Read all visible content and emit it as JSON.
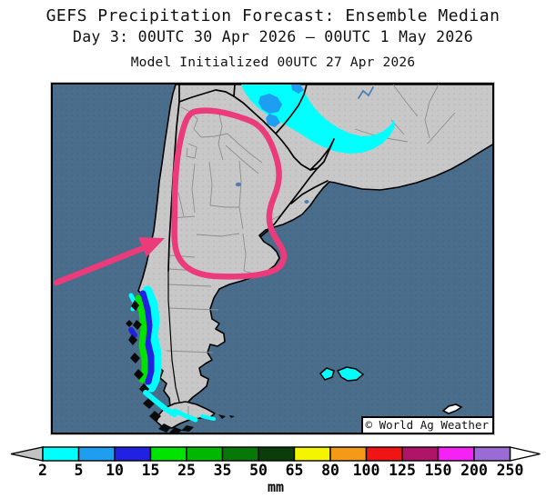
{
  "header": {
    "title": "GEFS Precipitation Forecast: Ensemble Median",
    "subtitle": "Day 3: 00UTC 30 Apr 2026 — 00UTC 1 May 2026",
    "init_line": "Model Initialized 00UTC 27 Apr 2026"
  },
  "map": {
    "watermark": "© World Ag Weather",
    "annotation": {
      "shape": "hand-drawn loop around central/northern Argentina with an arrow entering from the southwest",
      "color": "#EC3B7A"
    },
    "precipitation_regions": [
      {
        "area": "Paraguay / northern Argentina / southern Brazil band",
        "median_precip_mm": "2-10"
      },
      {
        "area": "southern Chile Andes coastal strip",
        "median_precip_mm": "2-25"
      },
      {
        "area": "Tierra del Fuego and Falkland Islands",
        "median_precip_mm": "2-5"
      },
      {
        "area": "central Argentina inside highlighted loop",
        "median_precip_mm": "< 2 (no shading)"
      }
    ]
  },
  "colorbar": {
    "unit": "mm",
    "tick_labels": [
      "2",
      "5",
      "10",
      "15",
      "25",
      "35",
      "50",
      "65",
      "80",
      "100",
      "125",
      "150",
      "200",
      "250"
    ],
    "colors": [
      "#00FFFF",
      "#1E9EF0",
      "#2121E3",
      "#00E400",
      "#00B800",
      "#077807",
      "#0A3D0A",
      "#F5F500",
      "#F59A18",
      "#F01414",
      "#B01468",
      "#F522F5",
      "#9A6BD4"
    ],
    "left_cap_color": "#C2C2C2",
    "right_cap_color": "#FFFFFF"
  },
  "theme": {
    "ocean": "#4A6D8C",
    "land": "#C8C8C8",
    "border": "#000000",
    "province-line": "#8E8E8E",
    "river": "#4F7FB0",
    "annotation-pink": "#EC3B7A",
    "precip-cyan": "#00FFFF",
    "precip-blue": "#1E9EF0",
    "precip-green": "#00E400",
    "page-bg": "#FFFFFF"
  }
}
